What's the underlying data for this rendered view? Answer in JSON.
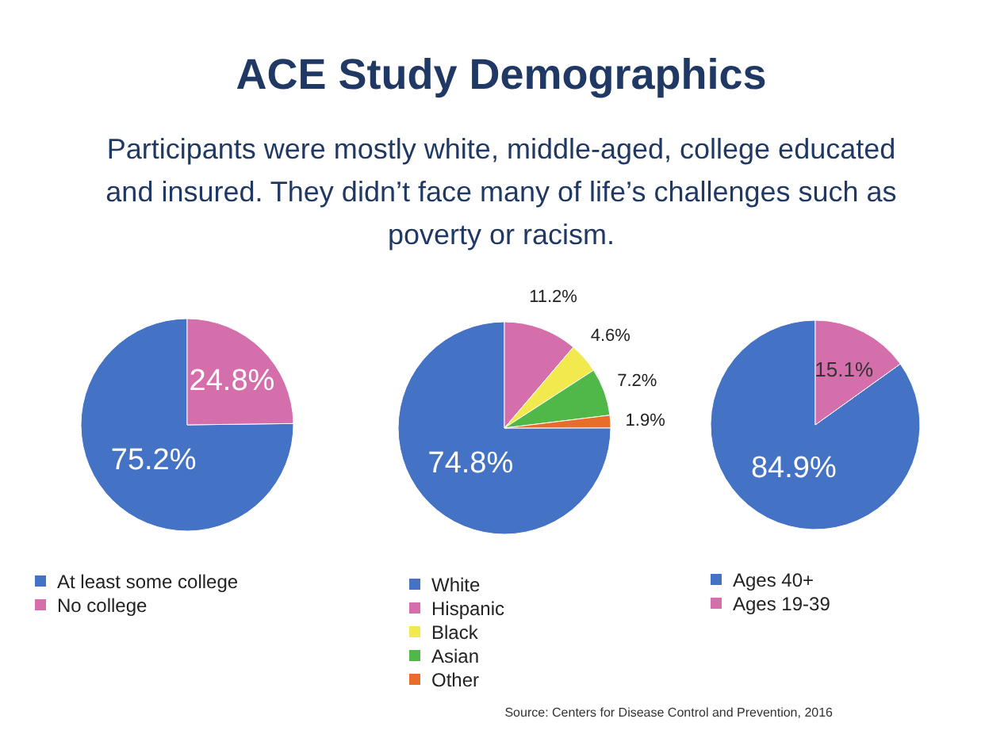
{
  "chart_data": [
    {
      "type": "pie",
      "title": "ACE Study Demographics",
      "subtitle": "Participants were mostly white, middle-aged, college educated and insured. They didn’t face many of life’s challenges such as poverty or racism.",
      "categories": [
        "At least some college",
        "No college"
      ],
      "values": [
        75.2,
        24.8
      ],
      "colors": [
        "#4472c4",
        "#d56fac"
      ],
      "value_labels": [
        "75.2%",
        "24.8%"
      ],
      "legend": "bottom"
    },
    {
      "type": "pie",
      "categories": [
        "White",
        "Hispanic",
        "Black",
        "Asian",
        "Other"
      ],
      "values": [
        74.8,
        11.2,
        4.6,
        7.2,
        1.9
      ],
      "colors": [
        "#4472c4",
        "#d56fac",
        "#f2e94e",
        "#4fb848",
        "#e96d2a"
      ],
      "value_labels": [
        "74.8%",
        "11.2%",
        "4.6%",
        "7.2%",
        "1.9%"
      ],
      "legend": "bottom"
    },
    {
      "type": "pie",
      "categories": [
        "Ages 40+",
        "Ages 19-39"
      ],
      "values": [
        84.9,
        15.1
      ],
      "colors": [
        "#4472c4",
        "#d56fac"
      ],
      "value_labels": [
        "84.9%",
        "15.1%"
      ],
      "legend": "bottom",
      "annotations": [
        "Source: Centers for Disease Control and Prevention, 2016"
      ]
    }
  ]
}
